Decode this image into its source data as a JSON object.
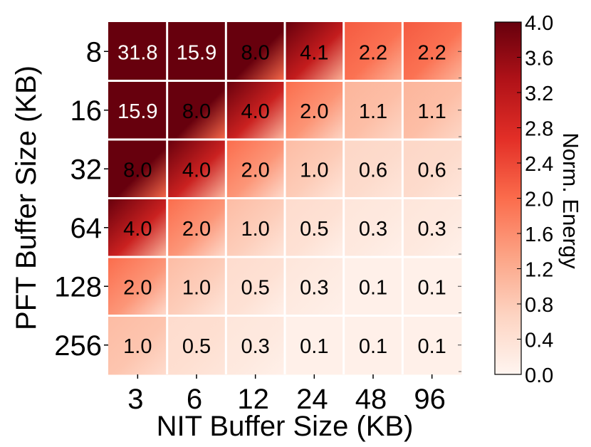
{
  "chart_data": {
    "type": "heatmap",
    "xlabel": "NIT Buffer Size (KB)",
    "ylabel": "PFT Buffer Size (KB)",
    "x_categories": [
      "3",
      "6",
      "12",
      "24",
      "48",
      "96"
    ],
    "y_categories": [
      "8",
      "16",
      "32",
      "64",
      "128",
      "256"
    ],
    "values": [
      [
        31.8,
        15.9,
        8.0,
        4.1,
        2.2,
        2.2
      ],
      [
        15.9,
        8.0,
        4.0,
        2.0,
        1.1,
        1.1
      ],
      [
        8.0,
        4.0,
        2.0,
        1.0,
        0.6,
        0.6
      ],
      [
        4.0,
        2.0,
        1.0,
        0.5,
        0.3,
        0.3
      ],
      [
        2.0,
        1.0,
        0.5,
        0.3,
        0.1,
        0.1
      ],
      [
        1.0,
        0.5,
        0.3,
        0.1,
        0.1,
        0.1
      ]
    ],
    "value_labels": [
      [
        "31.8",
        "15.9",
        "8.0",
        "4.1",
        "2.2",
        "2.2"
      ],
      [
        "15.9",
        "8.0",
        "4.0",
        "2.0",
        "1.1",
        "1.1"
      ],
      [
        "8.0",
        "4.0",
        "2.0",
        "1.0",
        "0.6",
        "0.6"
      ],
      [
        "4.0",
        "2.0",
        "1.0",
        "0.5",
        "0.3",
        "0.3"
      ],
      [
        "2.0",
        "1.0",
        "0.5",
        "0.3",
        "0.1",
        "0.1"
      ],
      [
        "1.0",
        "0.5",
        "0.3",
        "0.1",
        "0.1",
        "0.1"
      ]
    ],
    "colorbar": {
      "label": "Norm. Energy",
      "range": [
        0.0,
        4.0
      ],
      "ticks": [
        "0.0",
        "0.4",
        "0.8",
        "1.2",
        "1.6",
        "2.0",
        "2.4",
        "2.8",
        "3.2",
        "3.6",
        "4.0"
      ],
      "colors": [
        "#fff5f0",
        "#fdd4c2",
        "#fca486",
        "#fb6c4c",
        "#e32f27",
        "#b11218",
        "#67000d"
      ]
    },
    "grid": false,
    "cell_divider_color": "#ffffff"
  }
}
